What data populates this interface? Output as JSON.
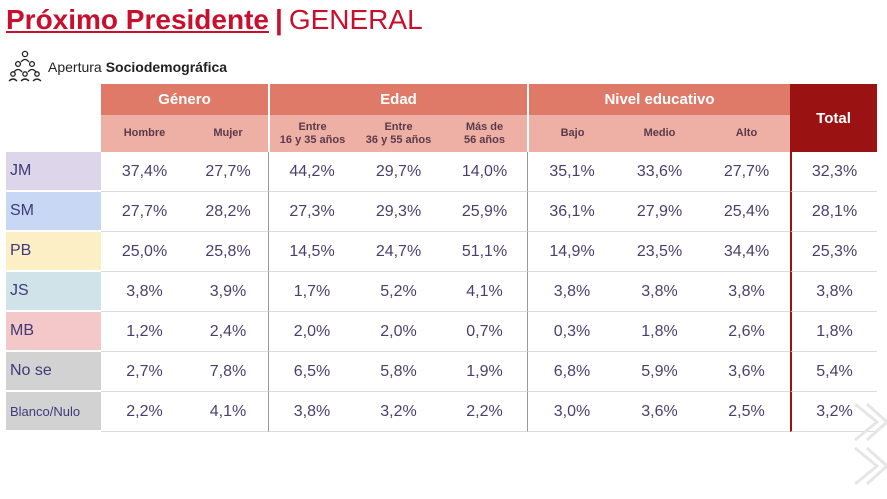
{
  "header": {
    "title_bold": "Próximo Presidente",
    "separator": "|",
    "title_rest": "GENERAL",
    "subtitle_prefix": "Apertura",
    "subtitle_bold": "Sociodemográfica"
  },
  "table": {
    "groups": {
      "genero": "Género",
      "edad": "Edad",
      "nivel": "Nivel educativo",
      "total": "Total"
    },
    "columns": {
      "hombre": "Hombre",
      "mujer": "Mujer",
      "edad1_a": "Entre",
      "edad1_b": "16 y 35 años",
      "edad2_a": "Entre",
      "edad2_b": "36 y 55 años",
      "edad3_a": "Más de",
      "edad3_b": "56 años",
      "bajo": "Bajo",
      "medio": "Medio",
      "alto": "Alto"
    },
    "rows": [
      {
        "label": "JM",
        "values": [
          "37,4%",
          "27,7%",
          "44,2%",
          "29,7%",
          "14,0%",
          "35,1%",
          "33,6%",
          "27,7%",
          "32,3%"
        ]
      },
      {
        "label": "SM",
        "values": [
          "27,7%",
          "28,2%",
          "27,3%",
          "29,3%",
          "25,9%",
          "36,1%",
          "27,9%",
          "25,4%",
          "28,1%"
        ]
      },
      {
        "label": "PB",
        "values": [
          "25,0%",
          "25,8%",
          "14,5%",
          "24,7%",
          "51,1%",
          "14,9%",
          "23,5%",
          "34,4%",
          "25,3%"
        ]
      },
      {
        "label": "JS",
        "values": [
          "3,8%",
          "3,9%",
          "1,7%",
          "5,2%",
          "4,1%",
          "3,8%",
          "3,8%",
          "3,8%",
          "3,8%"
        ]
      },
      {
        "label": "MB",
        "values": [
          "1,2%",
          "2,4%",
          "2,0%",
          "2,0%",
          "0,7%",
          "0,3%",
          "1,8%",
          "2,6%",
          "1,8%"
        ]
      },
      {
        "label": "No se",
        "values": [
          "2,7%",
          "7,8%",
          "6,5%",
          "5,8%",
          "1,9%",
          "6,8%",
          "5,9%",
          "3,6%",
          "5,4%"
        ]
      },
      {
        "label": "Blanco/Nulo",
        "values": [
          "2,2%",
          "4,1%",
          "3,8%",
          "3,2%",
          "2,2%",
          "3,0%",
          "3,6%",
          "2,5%",
          "3,2%"
        ]
      }
    ]
  },
  "colors": {
    "title_red": "#c8102e",
    "header_salmon": "#e07a68",
    "subheader_pink": "#eeb0a4",
    "total_dark_red": "#9b1212",
    "text_purple": "#4a3f6b"
  },
  "icons": {
    "subtitle_icon": "people-pyramid-icon",
    "decoration": "chevron-pattern-icon"
  }
}
